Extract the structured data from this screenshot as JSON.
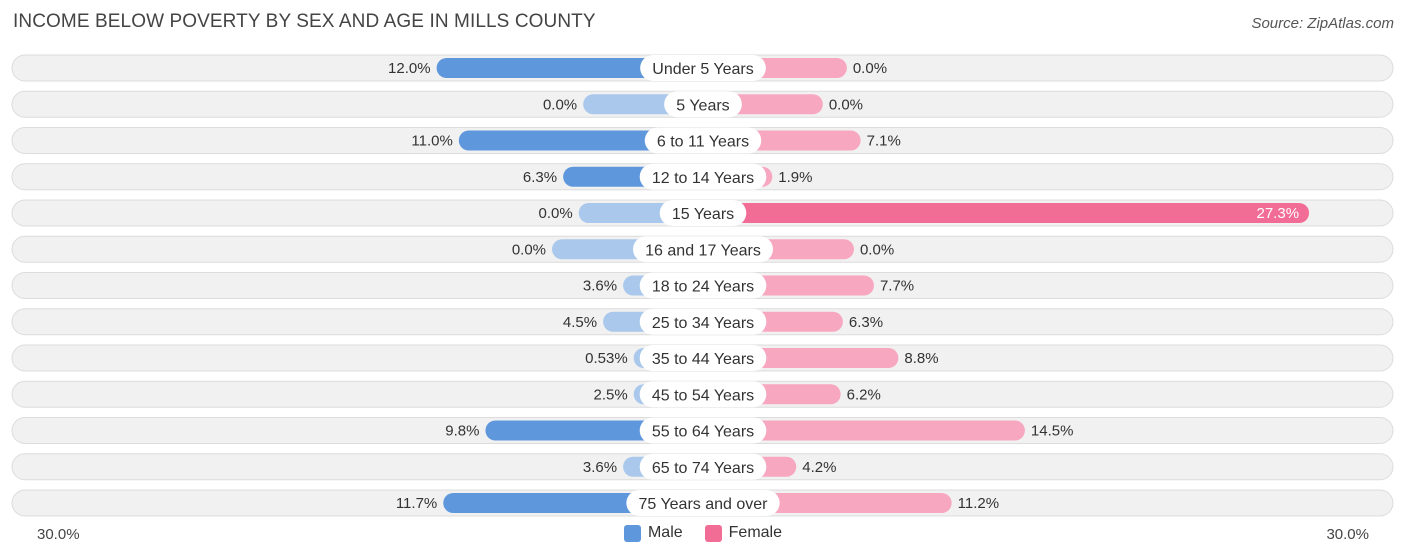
{
  "header": {
    "title": "INCOME BELOW POVERTY BY SEX AND AGE IN MILLS COUNTY",
    "source": "Source: ZipAtlas.com"
  },
  "colors": {
    "male_strong": "#5f97dc",
    "male_light": "#a9c8ec",
    "female_strong": "#f26d96",
    "female_light": "#f7a7c0",
    "row_bg": "#f1f1f1",
    "row_border": "#dcdcdc"
  },
  "chart_data": {
    "type": "bar",
    "title": "INCOME BELOW POVERTY BY SEX AND AGE IN MILLS COUNTY",
    "orientation": "horizontal-diverging",
    "categories": [
      "Under 5 Years",
      "5 Years",
      "6 to 11 Years",
      "12 to 14 Years",
      "15 Years",
      "16 and 17 Years",
      "18 to 24 Years",
      "25 to 34 Years",
      "35 to 44 Years",
      "45 to 54 Years",
      "55 to 64 Years",
      "65 to 74 Years",
      "75 Years and over"
    ],
    "series": [
      {
        "name": "Male",
        "values": [
          12.0,
          0.0,
          11.0,
          6.3,
          0.0,
          0.0,
          3.6,
          4.5,
          0.53,
          2.5,
          9.8,
          3.6,
          11.7
        ],
        "labels": [
          "12.0%",
          "0.0%",
          "11.0%",
          "6.3%",
          "0.0%",
          "0.0%",
          "3.6%",
          "4.5%",
          "0.53%",
          "2.5%",
          "9.8%",
          "3.6%",
          "11.7%"
        ]
      },
      {
        "name": "Female",
        "values": [
          0.0,
          0.0,
          7.1,
          1.9,
          27.3,
          0.0,
          7.7,
          6.3,
          8.8,
          6.2,
          14.5,
          4.2,
          11.2
        ],
        "labels": [
          "0.0%",
          "0.0%",
          "7.1%",
          "1.9%",
          "27.3%",
          "0.0%",
          "7.7%",
          "6.3%",
          "8.8%",
          "6.2%",
          "14.5%",
          "4.2%",
          "11.2%"
        ]
      }
    ],
    "xlim": [
      -30,
      30
    ],
    "axis_labels": {
      "left": "30.0%",
      "right": "30.0%"
    },
    "legend": [
      "Male",
      "Female"
    ],
    "legend_position": "bottom-center"
  }
}
